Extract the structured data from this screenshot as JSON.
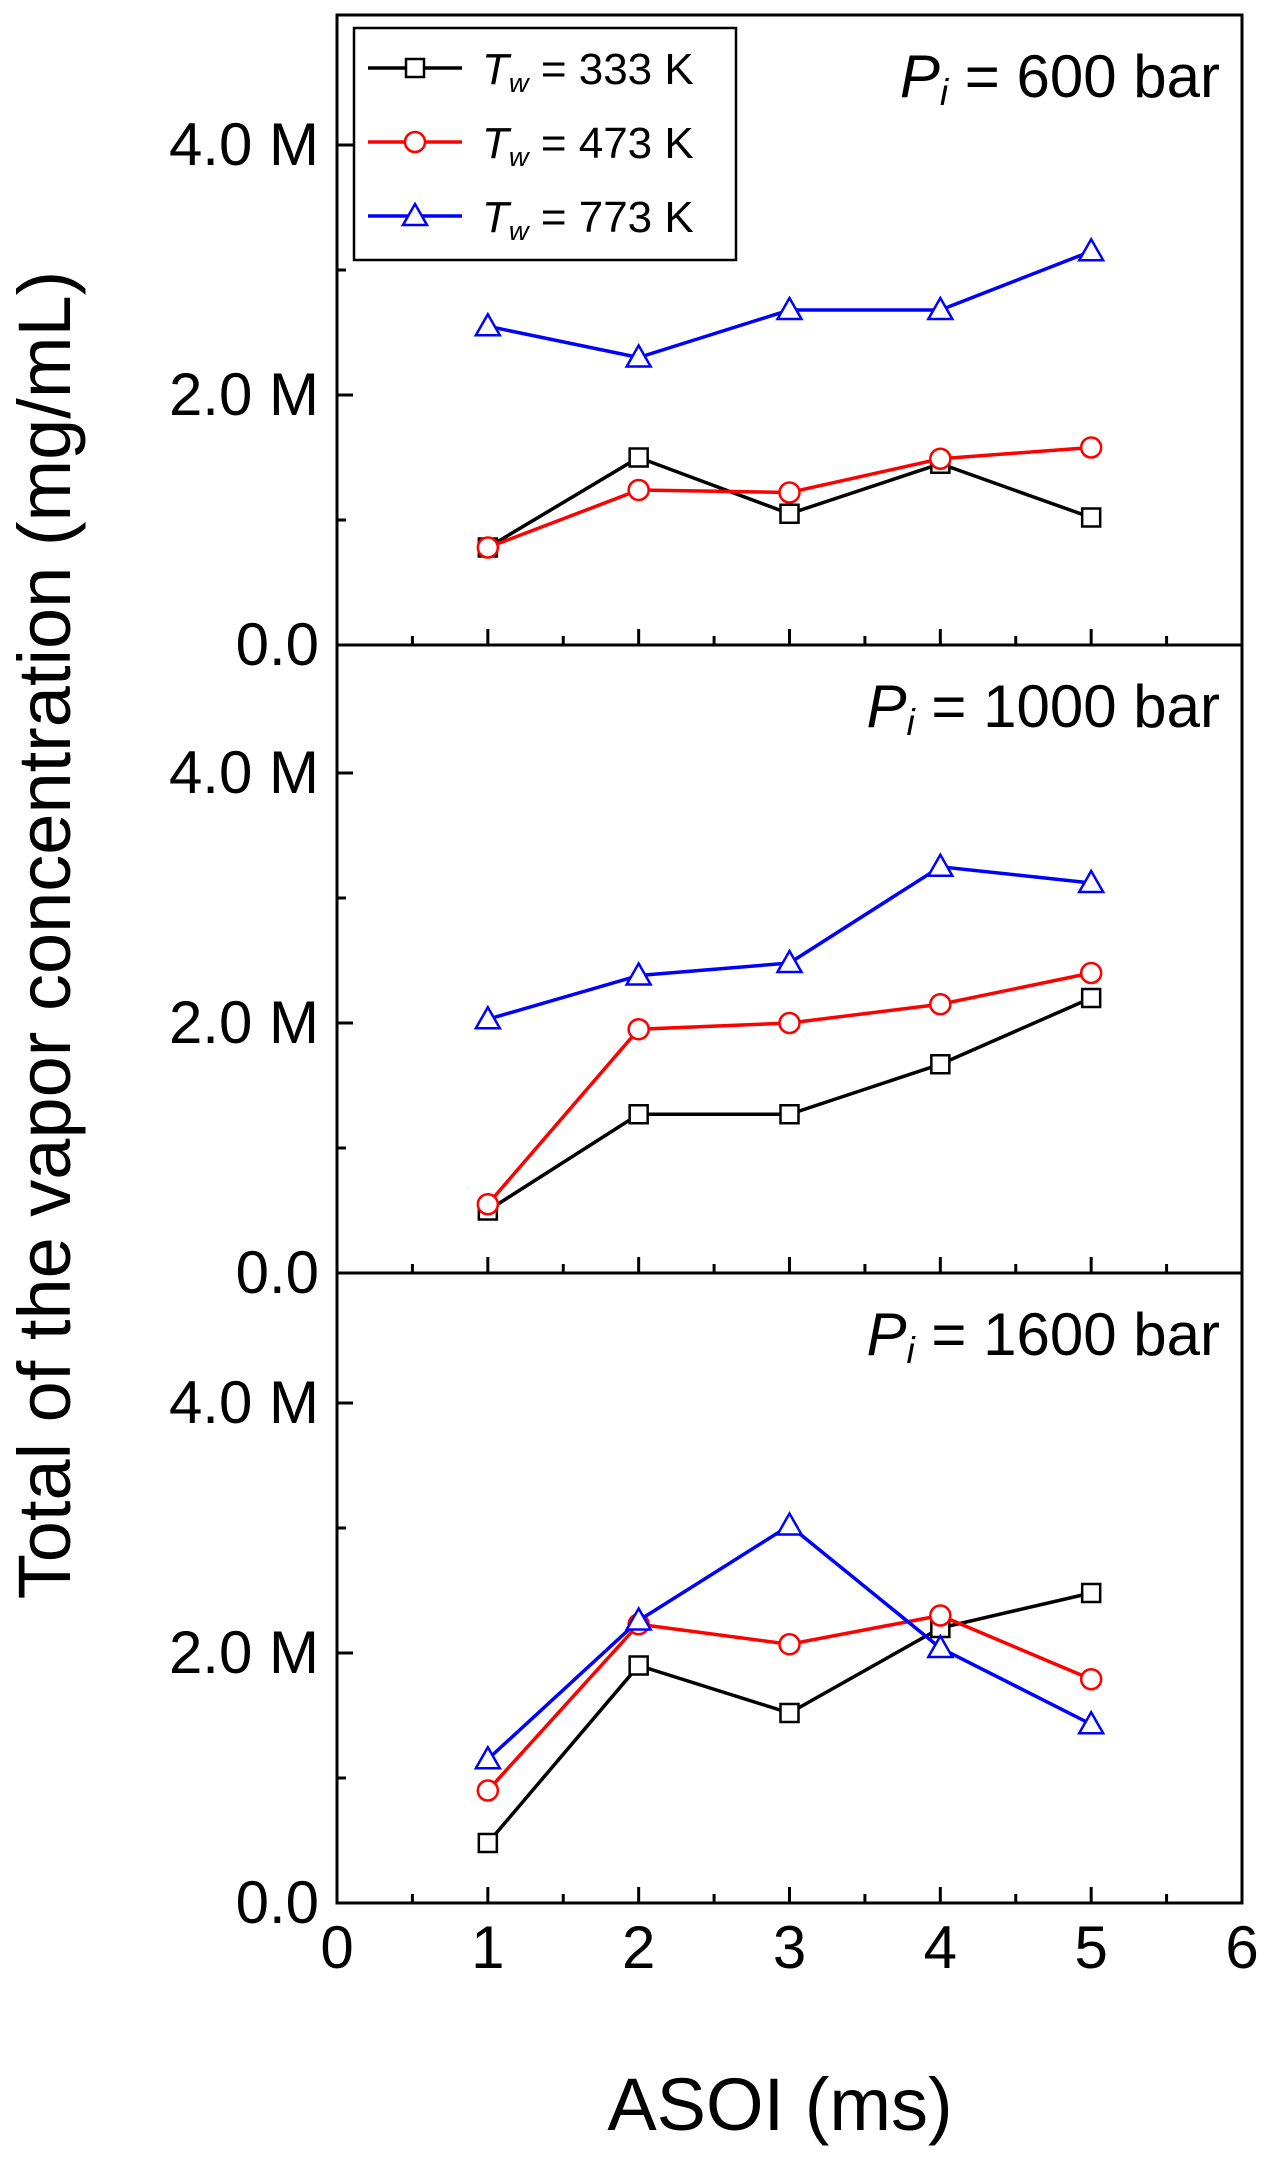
{
  "chart_data": {
    "type": "line",
    "xlabel": "ASOI (ms)",
    "ylabel": "Total of the vapor concentration (mg/mL)",
    "xlim": [
      0,
      6
    ],
    "ylim": [
      0,
      4.8
    ],
    "x_ticks": [
      "0",
      "1",
      "2",
      "3",
      "4",
      "5",
      "6"
    ],
    "y_ticks": [
      "0.0",
      "2.0 M",
      "4.0 M"
    ],
    "legend": [
      {
        "symbol": "T",
        "subscript": "w",
        "text": "= 333 K",
        "color": "#000000",
        "marker": "square"
      },
      {
        "symbol": "T",
        "subscript": "w",
        "text": "= 473 K",
        "color": "#ff0000",
        "marker": "circle"
      },
      {
        "symbol": "T",
        "subscript": "w",
        "text": "= 773 K",
        "color": "#0000ff",
        "marker": "triangle"
      }
    ],
    "panels": [
      {
        "label_symbol": "P",
        "label_subscript": "i",
        "label_text": "= 600 bar",
        "x": [
          1,
          2,
          3,
          4,
          5
        ],
        "series": [
          {
            "name": "Tw = 333 K",
            "values": [
              0.78,
              1.5,
              1.05,
              1.45,
              1.02
            ]
          },
          {
            "name": "Tw = 473 K",
            "values": [
              0.78,
              1.24,
              1.22,
              1.49,
              1.58
            ]
          },
          {
            "name": "Tw = 773 K",
            "values": [
              2.55,
              2.3,
              2.68,
              2.68,
              3.15
            ]
          }
        ]
      },
      {
        "label_symbol": "P",
        "label_subscript": "i",
        "label_text": "= 1000 bar",
        "x": [
          1,
          2,
          3,
          4,
          5
        ],
        "series": [
          {
            "name": "Tw = 333 K",
            "values": [
              0.5,
              1.27,
              1.27,
              1.67,
              2.2
            ]
          },
          {
            "name": "Tw = 473 K",
            "values": [
              0.55,
              1.95,
              2.0,
              2.15,
              2.4
            ]
          },
          {
            "name": "Tw = 773 K",
            "values": [
              2.03,
              2.38,
              2.48,
              3.25,
              3.12
            ]
          }
        ]
      },
      {
        "label_symbol": "P",
        "label_subscript": "i",
        "label_text": "= 1600 bar",
        "x": [
          1,
          2,
          3,
          4,
          5
        ],
        "series": [
          {
            "name": "Tw = 333 K",
            "values": [
              0.48,
              1.9,
              1.52,
              2.2,
              2.48
            ]
          },
          {
            "name": "Tw = 473 K",
            "values": [
              0.9,
              2.23,
              2.07,
              2.3,
              1.79
            ]
          },
          {
            "name": "Tw = 773 K",
            "values": [
              1.15,
              2.26,
              3.02,
              2.04,
              1.43
            ]
          }
        ]
      }
    ]
  }
}
